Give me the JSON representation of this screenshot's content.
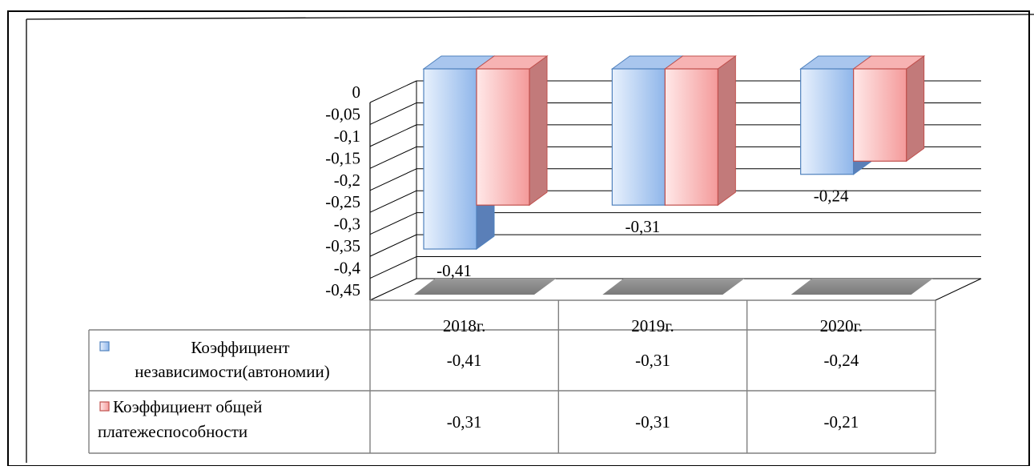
{
  "chart_data": {
    "type": "bar",
    "categories": [
      "2018г.",
      "2019г.",
      "2020г."
    ],
    "series": [
      {
        "name": "Коэффициент независимости(автономии)",
        "name_lines": [
          "Коэффициент",
          "независимости(автономии)"
        ],
        "values": [
          -0.41,
          -0.31,
          -0.24
        ],
        "labels": [
          "-0,41",
          "-0,31",
          "-0,24"
        ],
        "color": "#8eb4e3"
      },
      {
        "name": "Коэффициент общей платежеспособности",
        "name_lines": [
          "Коэффициент общей",
          "платежеспособности"
        ],
        "values": [
          -0.31,
          -0.31,
          -0.21
        ],
        "labels": [
          "-0,31",
          "-0,31",
          "-0,21"
        ],
        "color": "#f4a5a5"
      }
    ],
    "data_labels": [
      {
        "series": 0,
        "category": 0,
        "text": "-0,41"
      },
      {
        "series": 0,
        "category": 1,
        "text": "-0,31"
      },
      {
        "series": 0,
        "category": 2,
        "text": "-0,24"
      }
    ],
    "y_ticks": [
      {
        "value": 0,
        "label": "0"
      },
      {
        "value": -0.05,
        "label": "-0,05"
      },
      {
        "value": -0.1,
        "label": "-0,1"
      },
      {
        "value": -0.15,
        "label": "-0,15"
      },
      {
        "value": -0.2,
        "label": "-0,2"
      },
      {
        "value": -0.25,
        "label": "-0,25"
      },
      {
        "value": -0.3,
        "label": "-0,3"
      },
      {
        "value": -0.35,
        "label": "-0,35"
      },
      {
        "value": -0.4,
        "label": "-0,4"
      },
      {
        "value": -0.45,
        "label": "-0,45"
      }
    ],
    "ylim": [
      -0.45,
      0
    ],
    "grid": true,
    "style": "3d-clustered-column",
    "legend": "data-table-below"
  }
}
